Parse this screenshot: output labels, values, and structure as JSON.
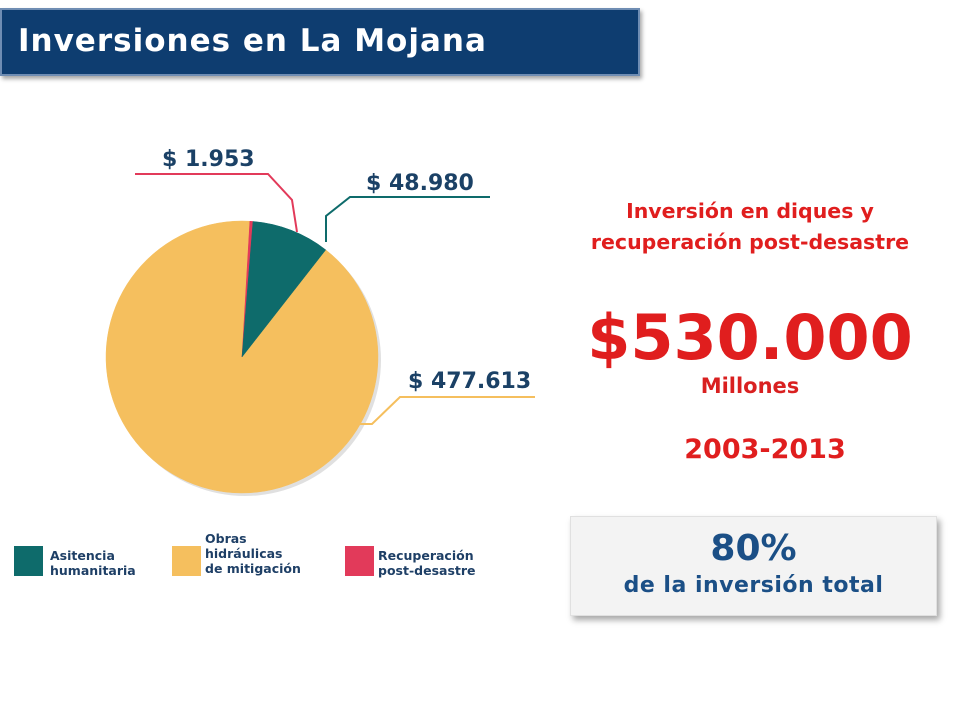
{
  "title": "Inversiones en La Mojana",
  "colors": {
    "title_bg": "#0e3d70",
    "humanitaria": "#0e6b6b",
    "obras": "#f5bf5e",
    "recuperacion": "#e23a5a",
    "highlight_red": "#e01e1e",
    "summary_blue": "#1b4f86"
  },
  "chart_data": {
    "type": "pie",
    "slices": [
      {
        "name": "Obras hidráulicas de mitigación",
        "value": 477613,
        "label": "$ 477.613",
        "color": "#f5bf5e"
      },
      {
        "name": "Recuperación post-desastre",
        "value": 1953,
        "label": "$ 1.953",
        "color": "#e23a5a"
      },
      {
        "name": "Asitencia humanitaria",
        "value": 48980,
        "label": "$ 48.980",
        "color": "#0e6b6b"
      }
    ],
    "legend": [
      {
        "lines": [
          "Asitencia",
          "humanitaria"
        ],
        "color": "#0e6b6b"
      },
      {
        "lines": [
          "Obras",
          "hidráulicas",
          "de mitigación"
        ],
        "color": "#f5bf5e"
      },
      {
        "lines": [
          "Recuperación",
          "post-desastre"
        ],
        "color": "#e23a5a"
      }
    ],
    "legend_position": "bottom"
  },
  "info": {
    "heading": "Inversión en diques y recuperación post-desastre",
    "amount": "$530.000",
    "unit": "Millones",
    "years": "2003-2013"
  },
  "summary": {
    "percent": "80%",
    "text": "de la inversión total"
  }
}
